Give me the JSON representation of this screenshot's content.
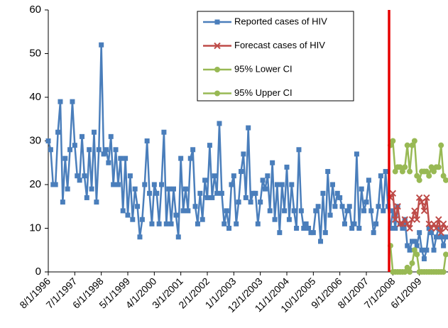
{
  "chart_data": {
    "type": "line",
    "categories": [
      "8/1/1996",
      null,
      null,
      null,
      null,
      null,
      null,
      null,
      null,
      null,
      null,
      "7/1/1997",
      null,
      null,
      null,
      null,
      null,
      null,
      null,
      null,
      null,
      null,
      "6/1/1998",
      null,
      null,
      null,
      null,
      null,
      null,
      null,
      null,
      null,
      null,
      "5/1/1999",
      null,
      null,
      null,
      null,
      null,
      null,
      null,
      null,
      null,
      null,
      "4/1/2000",
      null,
      null,
      null,
      null,
      null,
      null,
      null,
      null,
      null,
      null,
      "3/1/2001",
      null,
      null,
      null,
      null,
      null,
      null,
      null,
      null,
      null,
      null,
      "2/1/2002",
      null,
      null,
      null,
      null,
      null,
      null,
      null,
      null,
      null,
      null,
      "1/1/2003",
      null,
      null,
      null,
      null,
      null,
      null,
      null,
      null,
      null,
      null,
      "12/1/2003",
      null,
      null,
      null,
      null,
      null,
      null,
      null,
      null,
      null,
      null,
      "11/1/2004",
      null,
      null,
      null,
      null,
      null,
      null,
      null,
      null,
      null,
      null,
      "10/1/2005",
      null,
      null,
      null,
      null,
      null,
      null,
      null,
      null,
      null,
      null,
      "9/1/2006",
      null,
      null,
      null,
      null,
      null,
      null,
      null,
      null,
      null,
      null,
      "8/1/2007",
      null,
      null,
      null,
      null,
      null,
      null,
      null,
      null,
      null,
      null,
      "7/1/2008",
      null,
      null,
      null,
      null,
      null,
      null,
      null,
      null,
      null,
      null,
      "6/1/2009",
      null,
      null,
      null,
      null,
      null,
      null,
      null,
      null,
      null,
      null,
      null
    ],
    "series": [
      {
        "name": "Reported cases of HIV",
        "color": "#4a7ebb",
        "marker": "square",
        "values": [
          30,
          28,
          20,
          20,
          32,
          39,
          16,
          26,
          19,
          28,
          39,
          29,
          22,
          21,
          31,
          22,
          17,
          28,
          19,
          32,
          16,
          28,
          52,
          27,
          28,
          25,
          31,
          20,
          28,
          20,
          26,
          14,
          26,
          13,
          22,
          12,
          19,
          15,
          8,
          12,
          20,
          30,
          18,
          11,
          20,
          18,
          11,
          20,
          32,
          11,
          19,
          11,
          19,
          13,
          8,
          26,
          14,
          19,
          14,
          26,
          28,
          15,
          11,
          18,
          12,
          21,
          17,
          29,
          17,
          22,
          18,
          34,
          18,
          11,
          14,
          10,
          20,
          22,
          11,
          16,
          23,
          27,
          17,
          33,
          16,
          18,
          18,
          11,
          16,
          21,
          19,
          22,
          14,
          25,
          12,
          20,
          9,
          20,
          14,
          24,
          12,
          20,
          14,
          10,
          28,
          14,
          10,
          11,
          10,
          9,
          9,
          14,
          15,
          7,
          18,
          9,
          23,
          13,
          20,
          15,
          18,
          17,
          15,
          11,
          14,
          15,
          10,
          11,
          27,
          10,
          19,
          14,
          16,
          21,
          14,
          9,
          11,
          15,
          22,
          14,
          23,
          15,
          10,
          14,
          10,
          15,
          11,
          10,
          12,
          6,
          5,
          7,
          7,
          6,
          9,
          5,
          3,
          5,
          10,
          9,
          5,
          8,
          10,
          8,
          6,
          8
        ]
      },
      {
        "name": "Forecast cases of HIV",
        "color": "#be4b48",
        "marker": "x",
        "values": [
          null,
          null,
          null,
          null,
          null,
          null,
          null,
          null,
          null,
          null,
          null,
          null,
          null,
          null,
          null,
          null,
          null,
          null,
          null,
          null,
          null,
          null,
          null,
          null,
          null,
          null,
          null,
          null,
          null,
          null,
          null,
          null,
          null,
          null,
          null,
          null,
          null,
          null,
          null,
          null,
          null,
          null,
          null,
          null,
          null,
          null,
          null,
          null,
          null,
          null,
          null,
          null,
          null,
          null,
          null,
          null,
          null,
          null,
          null,
          null,
          null,
          null,
          null,
          null,
          null,
          null,
          null,
          null,
          null,
          null,
          null,
          null,
          null,
          null,
          null,
          null,
          null,
          null,
          null,
          null,
          null,
          null,
          null,
          null,
          null,
          null,
          null,
          null,
          null,
          null,
          null,
          null,
          null,
          null,
          null,
          null,
          null,
          null,
          null,
          null,
          null,
          null,
          null,
          null,
          null,
          null,
          null,
          null,
          null,
          null,
          null,
          null,
          null,
          null,
          null,
          null,
          null,
          null,
          null,
          null,
          null,
          null,
          null,
          null,
          null,
          null,
          null,
          null,
          null,
          null,
          null,
          null,
          null,
          null,
          null,
          null,
          null,
          null,
          null,
          null,
          null,
          null,
          17,
          18,
          12,
          15,
          11,
          11,
          12,
          11,
          10,
          12,
          14,
          12,
          17,
          16,
          14,
          17,
          11,
          10,
          11,
          10,
          12,
          9,
          11,
          10
        ]
      },
      {
        "name": "95% Lower CI",
        "color": "#98b954",
        "marker": "circle",
        "values": [
          null,
          null,
          null,
          null,
          null,
          null,
          null,
          null,
          null,
          null,
          null,
          null,
          null,
          null,
          null,
          null,
          null,
          null,
          null,
          null,
          null,
          null,
          null,
          null,
          null,
          null,
          null,
          null,
          null,
          null,
          null,
          null,
          null,
          null,
          null,
          null,
          null,
          null,
          null,
          null,
          null,
          null,
          null,
          null,
          null,
          null,
          null,
          null,
          null,
          null,
          null,
          null,
          null,
          null,
          null,
          null,
          null,
          null,
          null,
          null,
          null,
          null,
          null,
          null,
          null,
          null,
          null,
          null,
          null,
          null,
          null,
          null,
          null,
          null,
          null,
          null,
          null,
          null,
          null,
          null,
          null,
          null,
          null,
          null,
          null,
          null,
          null,
          null,
          null,
          null,
          null,
          null,
          null,
          null,
          null,
          null,
          null,
          null,
          null,
          null,
          null,
          null,
          null,
          null,
          null,
          null,
          null,
          null,
          null,
          null,
          null,
          null,
          null,
          null,
          null,
          null,
          null,
          null,
          null,
          null,
          null,
          null,
          null,
          null,
          null,
          null,
          null,
          null,
          null,
          null,
          null,
          null,
          null,
          null,
          null,
          null,
          null,
          null,
          null,
          null,
          null,
          null,
          6,
          0,
          0,
          0,
          0,
          0,
          0,
          1,
          0,
          2,
          5,
          4,
          0,
          0,
          0,
          0,
          0,
          0,
          0,
          0,
          0,
          0,
          0,
          4
        ]
      },
      {
        "name": "95% Upper CI",
        "color": "#98b954",
        "marker": "circle",
        "values": [
          null,
          null,
          null,
          null,
          null,
          null,
          null,
          null,
          null,
          null,
          null,
          null,
          null,
          null,
          null,
          null,
          null,
          null,
          null,
          null,
          null,
          null,
          null,
          null,
          null,
          null,
          null,
          null,
          null,
          null,
          null,
          null,
          null,
          null,
          null,
          null,
          null,
          null,
          null,
          null,
          null,
          null,
          null,
          null,
          null,
          null,
          null,
          null,
          null,
          null,
          null,
          null,
          null,
          null,
          null,
          null,
          null,
          null,
          null,
          null,
          null,
          null,
          null,
          null,
          null,
          null,
          null,
          null,
          null,
          null,
          null,
          null,
          null,
          null,
          null,
          null,
          null,
          null,
          null,
          null,
          null,
          null,
          null,
          null,
          null,
          null,
          null,
          null,
          null,
          null,
          null,
          null,
          null,
          null,
          null,
          null,
          null,
          null,
          null,
          null,
          null,
          null,
          null,
          null,
          null,
          null,
          null,
          null,
          null,
          null,
          null,
          null,
          null,
          null,
          null,
          null,
          null,
          null,
          null,
          null,
          null,
          null,
          null,
          null,
          null,
          null,
          null,
          null,
          null,
          null,
          null,
          null,
          null,
          null,
          null,
          null,
          null,
          null,
          null,
          null,
          null,
          null,
          29,
          30,
          23,
          24,
          24,
          23,
          24,
          29,
          23,
          29,
          30,
          22,
          21,
          23,
          23,
          23,
          22,
          24,
          23,
          24,
          24,
          29,
          22,
          21
        ]
      }
    ],
    "ylim": [
      0,
      60
    ],
    "yticks": [
      0,
      10,
      20,
      30,
      40,
      50,
      60
    ],
    "grid": false
  }
}
